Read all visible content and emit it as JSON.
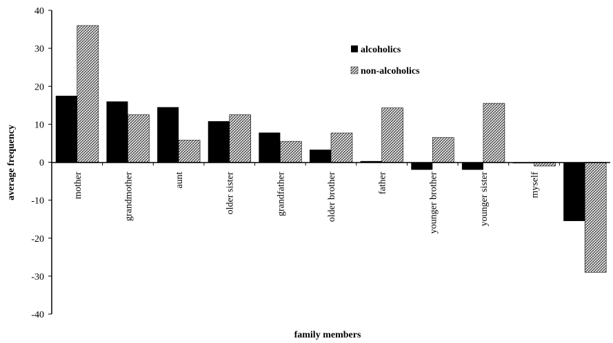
{
  "chart_data": {
    "type": "bar",
    "title": "",
    "xlabel": "family members",
    "ylabel": "average frequency",
    "ylim": [
      -40,
      40
    ],
    "yticks": [
      40,
      30,
      20,
      10,
      0,
      -10,
      -20,
      -30,
      -40
    ],
    "grid": false,
    "legend_position": "top-right",
    "categories": [
      "mother",
      "grandmother",
      "aunt",
      "older sister",
      "grandfather",
      "older brother",
      "father",
      "younger brother",
      "younger sister",
      "myself",
      ""
    ],
    "series": [
      {
        "name": "alcoholics",
        "color": "#000000",
        "pattern": "solid",
        "values": [
          17.5,
          16,
          14.5,
          10.8,
          7.8,
          3.3,
          0.3,
          -2,
          -2,
          -0.3,
          -15.5
        ]
      },
      {
        "name": "non-alcoholics",
        "color": "#7a7a7a",
        "pattern": "crosshatch",
        "values": [
          36,
          12.5,
          5.8,
          12.5,
          5.5,
          7.7,
          14.3,
          6.5,
          15.5,
          -1,
          -29
        ]
      }
    ]
  }
}
